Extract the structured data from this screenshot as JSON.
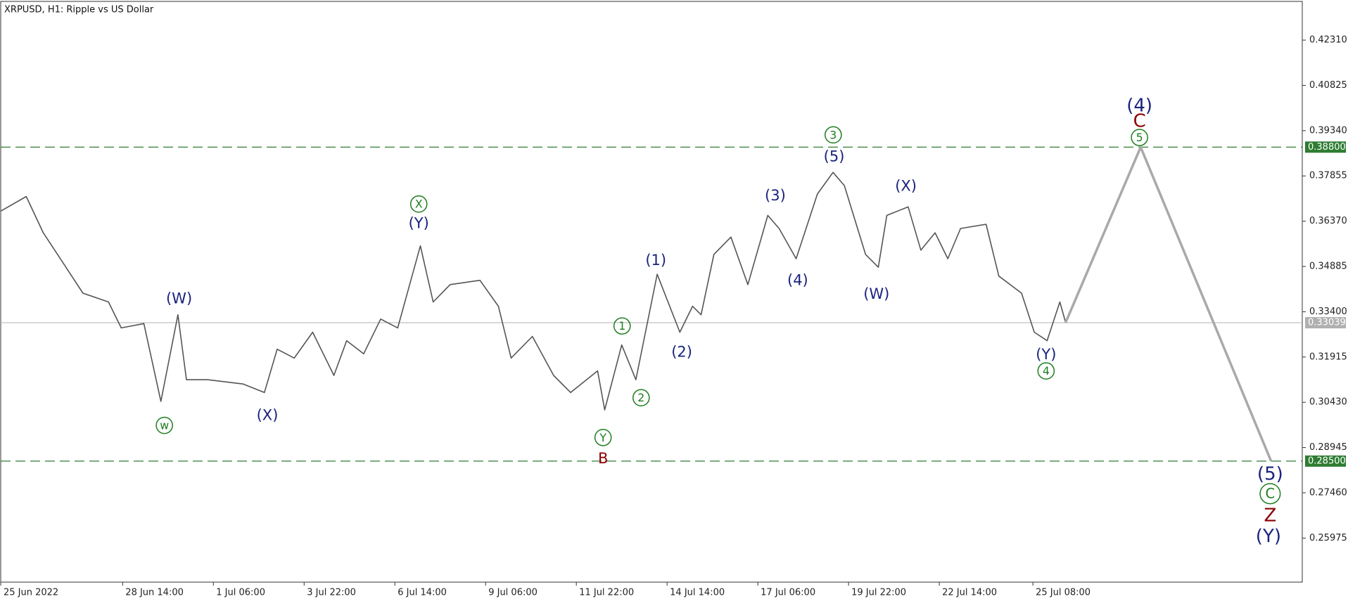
{
  "chart_data": {
    "type": "line",
    "title": "XRPUSD, H1:  Ripple vs US Dollar",
    "xlim": [
      0,
      918
    ],
    "ylim": [
      0.2453,
      0.4358
    ],
    "xticks": [
      {
        "value": 0,
        "label": "25 Jun 2022"
      },
      {
        "value": 86,
        "label": "28 Jun 14:00"
      },
      {
        "value": 150,
        "label": "1 Jul 06:00"
      },
      {
        "value": 214,
        "label": "3 Jul 22:00"
      },
      {
        "value": 278,
        "label": "6 Jul 14:00"
      },
      {
        "value": 342,
        "label": "9 Jul 06:00"
      },
      {
        "value": 406,
        "label": "11 Jul 22:00"
      },
      {
        "value": 470,
        "label": "14 Jul 14:00"
      },
      {
        "value": 534,
        "label": "17 Jul 06:00"
      },
      {
        "value": 598,
        "label": "19 Jul 22:00"
      },
      {
        "value": 662,
        "label": "22 Jul 14:00"
      },
      {
        "value": 728,
        "label": "25 Jul 08:00"
      }
    ],
    "yticks": [
      {
        "value": 0.4231,
        "label": "0.42310"
      },
      {
        "value": 0.40825,
        "label": "0.40825"
      },
      {
        "value": 0.3934,
        "label": "0.39340"
      },
      {
        "value": 0.37855,
        "label": "0.37855"
      },
      {
        "value": 0.3637,
        "label": "0.36370"
      },
      {
        "value": 0.34885,
        "label": "0.34885"
      },
      {
        "value": 0.334,
        "label": "0.33400"
      },
      {
        "value": 0.31915,
        "label": "0.31915"
      },
      {
        "value": 0.3043,
        "label": "0.30430"
      },
      {
        "value": 0.28945,
        "label": "0.28945"
      },
      {
        "value": 0.2746,
        "label": "0.27460"
      },
      {
        "value": 0.25975,
        "label": "0.25975"
      }
    ],
    "series": [
      {
        "color": "#555555",
        "x": [
          0,
          18,
          30,
          46,
          58,
          76,
          85,
          101,
          113,
          125,
          131,
          146,
          171,
          186,
          195,
          207,
          220,
          235,
          244,
          256,
          268,
          280,
          296,
          305,
          317,
          338,
          351,
          360,
          375,
          390,
          402,
          421,
          426,
          438,
          448,
          463,
          479,
          488,
          494,
          503,
          515,
          527,
          541,
          549,
          561,
          576,
          587,
          595,
          610,
          619,
          625,
          640,
          649,
          659,
          668,
          677,
          695,
          704,
          720,
          729,
          738,
          747,
          751
        ],
        "values": [
          0.367,
          0.3718,
          0.3599,
          0.3486,
          0.3401,
          0.3372,
          0.3287,
          0.3301,
          0.3046,
          0.333,
          0.3117,
          0.3117,
          0.3103,
          0.3075,
          0.3217,
          0.3188,
          0.3273,
          0.3131,
          0.3245,
          0.3202,
          0.3316,
          0.3287,
          0.3556,
          0.3372,
          0.3429,
          0.3443,
          0.3358,
          0.3188,
          0.3259,
          0.3131,
          0.3075,
          0.3146,
          0.3018,
          0.3231,
          0.3117,
          0.3463,
          0.3273,
          0.3358,
          0.333,
          0.3528,
          0.3585,
          0.3429,
          0.3656,
          0.3613,
          0.3514,
          0.3726,
          0.3797,
          0.3754,
          0.3528,
          0.3486,
          0.3656,
          0.3684,
          0.3542,
          0.3599,
          0.3514,
          0.3613,
          0.3627,
          0.3457,
          0.3401,
          0.3273,
          0.3245,
          0.3372,
          0.3306
        ]
      },
      {
        "color": "#a9a9a9",
        "x": [
          751,
          804,
          896
        ],
        "values": [
          0.33039,
          0.388,
          0.285
        ]
      }
    ],
    "levels": [
      {
        "value": 0.388,
        "label": "0.38800",
        "color": "#2e7d32",
        "dashed": true
      },
      {
        "value": 0.285,
        "label": "0.28500",
        "color": "#2e7d32",
        "dashed": true
      },
      {
        "value": 0.33039,
        "label": "0.33039",
        "color": "#b0b0b0",
        "dashed": false
      }
    ],
    "annotations": [
      {
        "text": "(W)",
        "color": "#1a237e"
      },
      {
        "text": "w",
        "color": "#1e7d1e",
        "circled": true
      },
      {
        "text": "(X)",
        "color": "#1a237e"
      },
      {
        "text": "X",
        "color": "#1e7d1e",
        "circled": true
      },
      {
        "text": "(Y)",
        "color": "#1a237e"
      },
      {
        "text": "Y",
        "color": "#1e7d1e",
        "circled": true
      },
      {
        "text": "B",
        "color": "#8b0000"
      },
      {
        "text": "1",
        "color": "#1e7d1e",
        "circled": true
      },
      {
        "text": "2",
        "color": "#1e7d1e",
        "circled": true
      },
      {
        "text": "(1)",
        "color": "#1a237e"
      },
      {
        "text": "(2)",
        "color": "#1a237e"
      },
      {
        "text": "(3)",
        "color": "#1a237e"
      },
      {
        "text": "(4)",
        "color": "#1a237e"
      },
      {
        "text": "3",
        "color": "#1e7d1e",
        "circled": true
      },
      {
        "text": "(5)",
        "color": "#1a237e"
      },
      {
        "text": "(W)",
        "color": "#1a237e"
      },
      {
        "text": "(X)",
        "color": "#1a237e"
      },
      {
        "text": "(Y)",
        "color": "#1a237e"
      },
      {
        "text": "4",
        "color": "#1e7d1e",
        "circled": true
      },
      {
        "text": "(4)",
        "color": "#1a237e"
      },
      {
        "text": "C",
        "color": "#8b0000"
      },
      {
        "text": "5",
        "color": "#1e7d1e",
        "circled": true
      },
      {
        "text": "(5)",
        "color": "#1a237e"
      },
      {
        "text": "C",
        "color": "#1e7d1e",
        "circled": true
      },
      {
        "text": "Z",
        "color": "#8b0000"
      },
      {
        "text": "(Y)",
        "color": "#1a237e"
      }
    ]
  }
}
